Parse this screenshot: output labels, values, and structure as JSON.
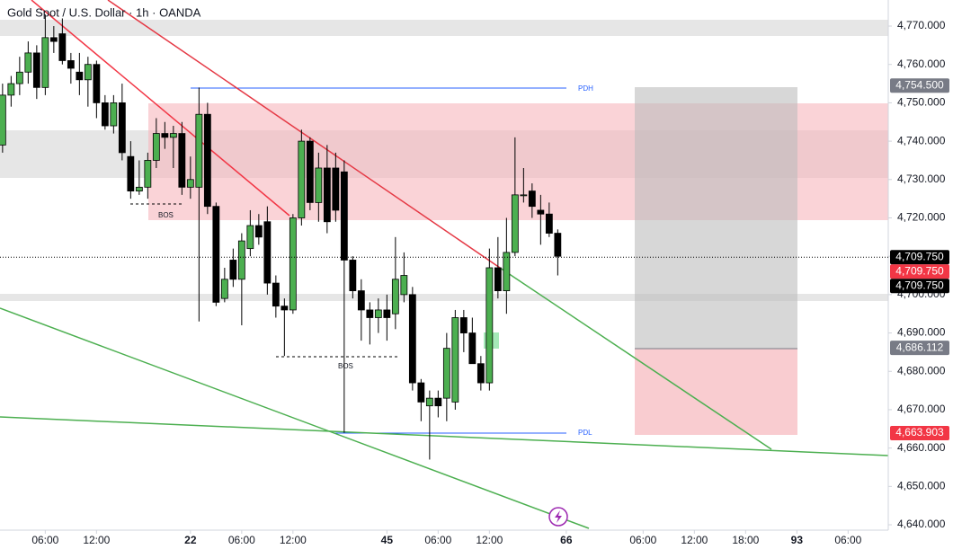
{
  "chart_data": {
    "type": "candlestick",
    "title": "Gold Spot / U.S. Dollar · 1h · OANDA",
    "up_color": "#4caf50",
    "down_color": "#000000",
    "open": [
      4739,
      4752,
      4755,
      4758,
      4763,
      4754,
      4767,
      4768,
      4761,
      4758,
      4756,
      4760,
      4750,
      4744,
      4750,
      4736,
      4727,
      4728,
      4735,
      4742,
      4741,
      4742,
      4728,
      4728,
      4747,
      4723,
      4699,
      4709,
      4704,
      4712,
      4718,
      4719,
      4703,
      4697,
      4696,
      4720,
      4740,
      4724,
      4733,
      4733,
      4732,
      4709,
      4701,
      4696,
      4694,
      4696,
      4695,
      4700,
      4700,
      4677,
      4671,
      4673,
      4673,
      4672,
      4694,
      4690,
      4682,
      4677,
      4707,
      4701,
      4711,
      4726,
      4727,
      4722,
      4721,
      4716
    ],
    "high": [
      4755,
      4757,
      4762,
      4766,
      4765,
      4773,
      4770,
      4772,
      4763,
      4763,
      4762,
      4761,
      4752,
      4752,
      4755,
      4740,
      4735,
      4737,
      4746,
      4745,
      4744,
      4745,
      4736,
      4754,
      4750,
      4724,
      4707,
      4712,
      4716,
      4722,
      4721,
      4723,
      4705,
      4699,
      4721,
      4743,
      4741,
      4737,
      4739,
      4737,
      4735,
      4710,
      4704,
      4698,
      4699,
      4700,
      4715,
      4711,
      4702,
      4678,
      4675,
      4675,
      4690,
      4696,
      4696,
      4694,
      4684,
      4712,
      4715,
      4720,
      4741,
      4733,
      4729,
      4726,
      4724,
      4717
    ],
    "low": [
      4737,
      4749,
      4752,
      4755,
      4751,
      4752,
      4763,
      4760,
      4755,
      4752,
      4749,
      4746,
      4743,
      4742,
      4735,
      4725,
      4726,
      4725,
      4733,
      4738,
      4733,
      4726,
      4725,
      4693,
      4721,
      4697,
      4698,
      4702,
      4692,
      4710,
      4713,
      4700,
      4694,
      4684,
      4695,
      4718,
      4722,
      4719,
      4716,
      4719,
      4664,
      4699,
      4688,
      4687,
      4690,
      4688,
      4691,
      4698,
      4675,
      4667,
      4657,
      4668,
      4667,
      4670,
      4685,
      4682,
      4675,
      4675,
      4699,
      4695,
      4710,
      4724,
      4720,
      4713,
      4715,
      4705
    ],
    "close": [
      4752,
      4755,
      4758,
      4763,
      4754,
      4767,
      4766,
      4761,
      4759,
      4756,
      4760,
      4750,
      4744,
      4750,
      4737,
      4727,
      4728,
      4735,
      4742,
      4741,
      4742,
      4728,
      4730,
      4747,
      4723,
      4698,
      4704,
      4704,
      4714,
      4718,
      4715,
      4703,
      4697,
      4696,
      4720,
      4740,
      4724,
      4733,
      4719,
      4722,
      4709,
      4701,
      4696,
      4694,
      4696,
      4694,
      4704,
      4705,
      4677,
      4672,
      4673,
      4671,
      4686,
      4694,
      4690,
      4682,
      4677,
      4707,
      4701,
      4711,
      4726,
      4726,
      4723,
      4721,
      4716,
      4710
    ],
    "xlim": [
      -0.3,
      103.7
    ],
    "xticks": [
      {
        "value": 5,
        "label": "06:00"
      },
      {
        "value": 11,
        "label": "12:00"
      },
      22,
      {
        "value": 28,
        "label": "06:00"
      },
      {
        "value": 34,
        "label": "12:00"
      },
      45,
      {
        "value": 51,
        "label": "06:00"
      },
      {
        "value": 57,
        "label": "12:00"
      },
      66,
      {
        "value": 75,
        "label": "06:00"
      },
      {
        "value": 81,
        "label": "12:00"
      },
      {
        "value": 87,
        "label": "18:00"
      },
      93,
      {
        "value": 99,
        "label": "06:00"
      }
    ],
    "ylim": [
      4638.6,
      4776.8
    ],
    "yticks": [
      {
        "value": 4640,
        "label": "4,640.000"
      },
      {
        "value": 4650,
        "label": "4,650.000"
      },
      {
        "value": 4660,
        "label": "4,660.000"
      },
      {
        "value": 4670,
        "label": "4,670.000"
      },
      {
        "value": 4680,
        "label": "4,680.000"
      },
      {
        "value": 4690,
        "label": "4,690.000"
      },
      {
        "value": 4700,
        "label": "4,700.000"
      },
      {
        "value": 4710,
        "label": "4,710.000"
      },
      {
        "value": 4720,
        "label": "4,720.000"
      },
      {
        "value": 4730,
        "label": "4,730.000"
      },
      {
        "value": 4740,
        "label": "4,740.000"
      },
      {
        "value": 4750,
        "label": "4,750.000"
      },
      {
        "value": 4760,
        "label": "4,760.000"
      },
      {
        "value": 4770,
        "label": "4,770.000"
      }
    ],
    "price_labels": [
      {
        "value": 4754.5,
        "label": "4,754.500",
        "color": "#787b86"
      },
      {
        "value": 4709.75,
        "label": "4,709.750",
        "color": "#000000"
      },
      {
        "value": 4709.75,
        "label": "4,709.750",
        "color": "#f23645"
      },
      {
        "value": 4709.75,
        "label": "4,709.750",
        "color": "#000000"
      },
      {
        "value": 4686.112,
        "label": "4,686.112",
        "color": "#787b86"
      },
      {
        "value": 4663.903,
        "label": "4,663.903",
        "color": "#f23645"
      }
    ],
    "annotations": [
      "PDH",
      "PDL",
      "BOS",
      "BOS"
    ]
  }
}
